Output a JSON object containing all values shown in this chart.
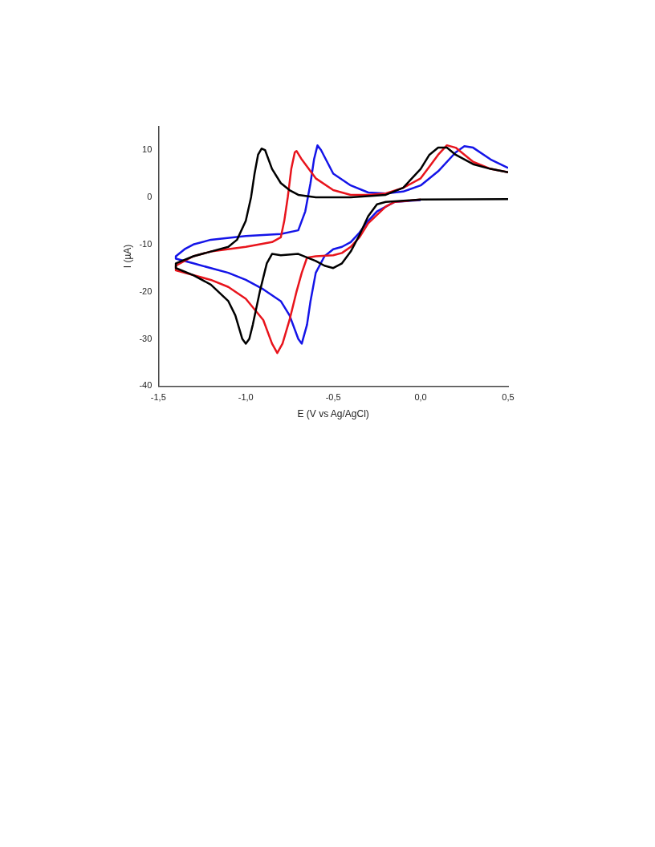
{
  "chart_data": {
    "type": "line",
    "xlabel": "E (V vs Ag/AgCl)",
    "ylabel": "I (µA)",
    "xlim": [
      -1.5,
      0.5
    ],
    "ylim": [
      -40,
      15
    ],
    "xticks": [
      {
        "value": -1.5,
        "label": "-1,5"
      },
      {
        "value": -1,
        "label": "-1,0"
      },
      {
        "value": -0.5,
        "label": "-0,5"
      },
      {
        "value": 0,
        "label": "0,0"
      },
      {
        "value": 0.5,
        "label": "0,5"
      }
    ],
    "yticks": [
      -40,
      -30,
      -20,
      -10,
      0,
      10
    ],
    "grid": false,
    "legend": false,
    "marker": "none",
    "line_style": "solid",
    "series": [
      {
        "color": "#000000",
        "x": [
          0.5,
          0.0,
          -0.2,
          -0.25,
          -0.3,
          -0.35,
          -0.4,
          -0.45,
          -0.5,
          -0.55,
          -0.6,
          -0.7,
          -0.8,
          -0.85,
          -0.88,
          -0.92,
          -0.96,
          -0.98,
          -1.0,
          -1.02,
          -1.06,
          -1.1,
          -1.2,
          -1.3,
          -1.4,
          -1.4,
          -1.3,
          -1.2,
          -1.1,
          -1.05,
          -1.0,
          -0.97,
          -0.95,
          -0.93,
          -0.91,
          -0.89,
          -0.85,
          -0.8,
          -0.75,
          -0.7,
          -0.6,
          -0.4,
          -0.2,
          -0.1,
          0.0,
          0.05,
          0.1,
          0.15,
          0.2,
          0.3,
          0.4,
          0.5
        ],
        "values": [
          -0.4,
          -0.5,
          -1,
          -1.5,
          -4,
          -8,
          -11.5,
          -14,
          -15,
          -14.5,
          -13.5,
          -12,
          -12.3,
          -12,
          -14,
          -20,
          -27,
          -30,
          -31,
          -30,
          -25,
          -22,
          -18.5,
          -16.5,
          -15,
          -14,
          -12.5,
          -11.5,
          -10.5,
          -9,
          -5,
          0,
          5,
          9,
          10.3,
          10,
          6,
          3,
          1.5,
          0.5,
          0,
          0,
          0.5,
          2,
          6,
          9,
          10.5,
          10.5,
          9,
          7,
          6,
          5.3
        ]
      },
      {
        "color": "#e8141c",
        "x": [
          0.0,
          -0.15,
          -0.2,
          -0.3,
          -0.35,
          -0.4,
          -0.45,
          -0.5,
          -0.6,
          -0.65,
          -0.68,
          -0.71,
          -0.75,
          -0.79,
          -0.82,
          -0.85,
          -0.9,
          -1.0,
          -1.1,
          -1.2,
          -1.3,
          -1.4,
          -1.4,
          -1.3,
          -1.2,
          -1.0,
          -0.85,
          -0.8,
          -0.78,
          -0.76,
          -0.74,
          -0.72,
          -0.71,
          -0.68,
          -0.6,
          -0.5,
          -0.4,
          -0.3,
          -0.2,
          -0.1,
          0.0,
          0.05,
          0.1,
          0.15,
          0.2,
          0.3,
          0.4,
          0.5
        ],
        "values": [
          -0.5,
          -1,
          -2,
          -5.5,
          -8.5,
          -10.5,
          -11.8,
          -12.3,
          -12.5,
          -12.8,
          -16,
          -20,
          -26,
          -31,
          -33,
          -31,
          -26,
          -21.5,
          -19,
          -17.5,
          -16.5,
          -15.5,
          -14.5,
          -12.5,
          -11.5,
          -10.5,
          -9.5,
          -8.5,
          -5,
          0,
          6,
          9.5,
          9.8,
          8,
          4,
          1.5,
          0.5,
          0.5,
          0.8,
          2,
          4,
          6.5,
          9,
          11,
          10.5,
          7.5,
          6,
          5.3
        ]
      },
      {
        "color": "#1414e8",
        "x": [
          0.0,
          -0.15,
          -0.25,
          -0.3,
          -0.35,
          -0.4,
          -0.45,
          -0.5,
          -0.55,
          -0.6,
          -0.63,
          -0.65,
          -0.68,
          -0.7,
          -0.75,
          -0.8,
          -0.9,
          -1.0,
          -1.1,
          -1.2,
          -1.3,
          -1.4,
          -1.4,
          -1.35,
          -1.3,
          -1.2,
          -1.0,
          -0.8,
          -0.7,
          -0.66,
          -0.63,
          -0.61,
          -0.59,
          -0.57,
          -0.5,
          -0.4,
          -0.3,
          -0.2,
          -0.1,
          0.0,
          0.1,
          0.2,
          0.25,
          0.3,
          0.4,
          0.5
        ],
        "values": [
          -0.6,
          -1,
          -3,
          -5,
          -7.5,
          -9.5,
          -10.5,
          -11,
          -12.5,
          -16,
          -22,
          -27,
          -31,
          -30,
          -25,
          -22,
          -19.5,
          -17.5,
          -16,
          -15,
          -14,
          -13,
          -12.5,
          -11,
          -10,
          -9,
          -8.2,
          -7.8,
          -7,
          -3,
          3,
          8,
          11,
          10,
          5,
          2.5,
          1,
          0.8,
          1.2,
          2.5,
          5.5,
          9.5,
          10.8,
          10.5,
          8,
          6.2
        ]
      }
    ]
  }
}
